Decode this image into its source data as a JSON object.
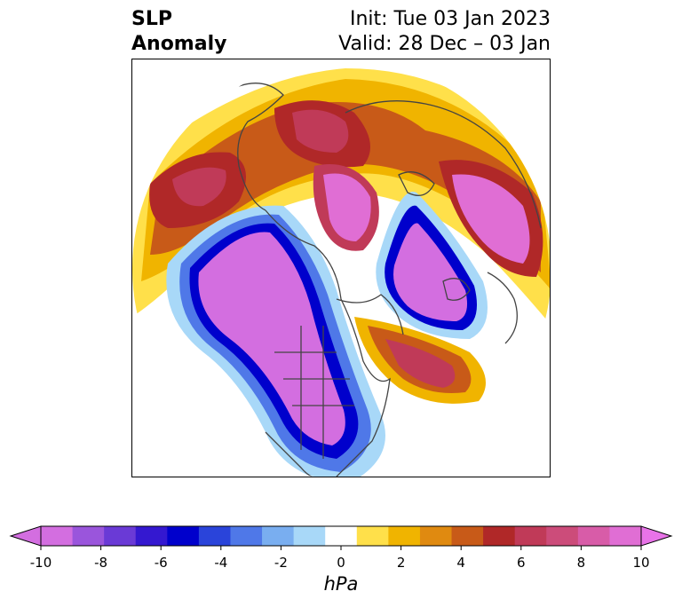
{
  "title": {
    "left_line1": "SLP",
    "left_line2": "Anomaly",
    "right_line1": "Init: Tue 03 Jan 2023",
    "right_line2": "Valid: 28 Dec – 03 Jan"
  },
  "colorbar": {
    "unit_label": "hPa",
    "ticks": [
      "-10",
      "-8",
      "-6",
      "-4",
      "-2",
      "0",
      "2",
      "4",
      "6",
      "8",
      "10"
    ],
    "levels": [
      -10,
      -9,
      -8,
      -7,
      -6,
      -5,
      -4,
      -3,
      -2,
      -1,
      1,
      2,
      3,
      4,
      5,
      6,
      7,
      8,
      9,
      10
    ],
    "colors": [
      "#d36ee0",
      "#9a55dc",
      "#6a3ad6",
      "#3418d0",
      "#0000cc",
      "#2a44da",
      "#4f78e8",
      "#79aef0",
      "#a8d8f8",
      "#ffffff",
      "#ffe04a",
      "#f0b400",
      "#e08a10",
      "#c85a18",
      "#b02828",
      "#c03a58",
      "#cc4c7a",
      "#d85ca8",
      "#e06ed4"
    ],
    "extend_min_color": "#d36ee0",
    "extend_max_color": "#e873e8"
  },
  "map": {
    "projection": "north-polar-stereographic",
    "ocean_color": "#ffffff",
    "coast_color": "#444444"
  }
}
